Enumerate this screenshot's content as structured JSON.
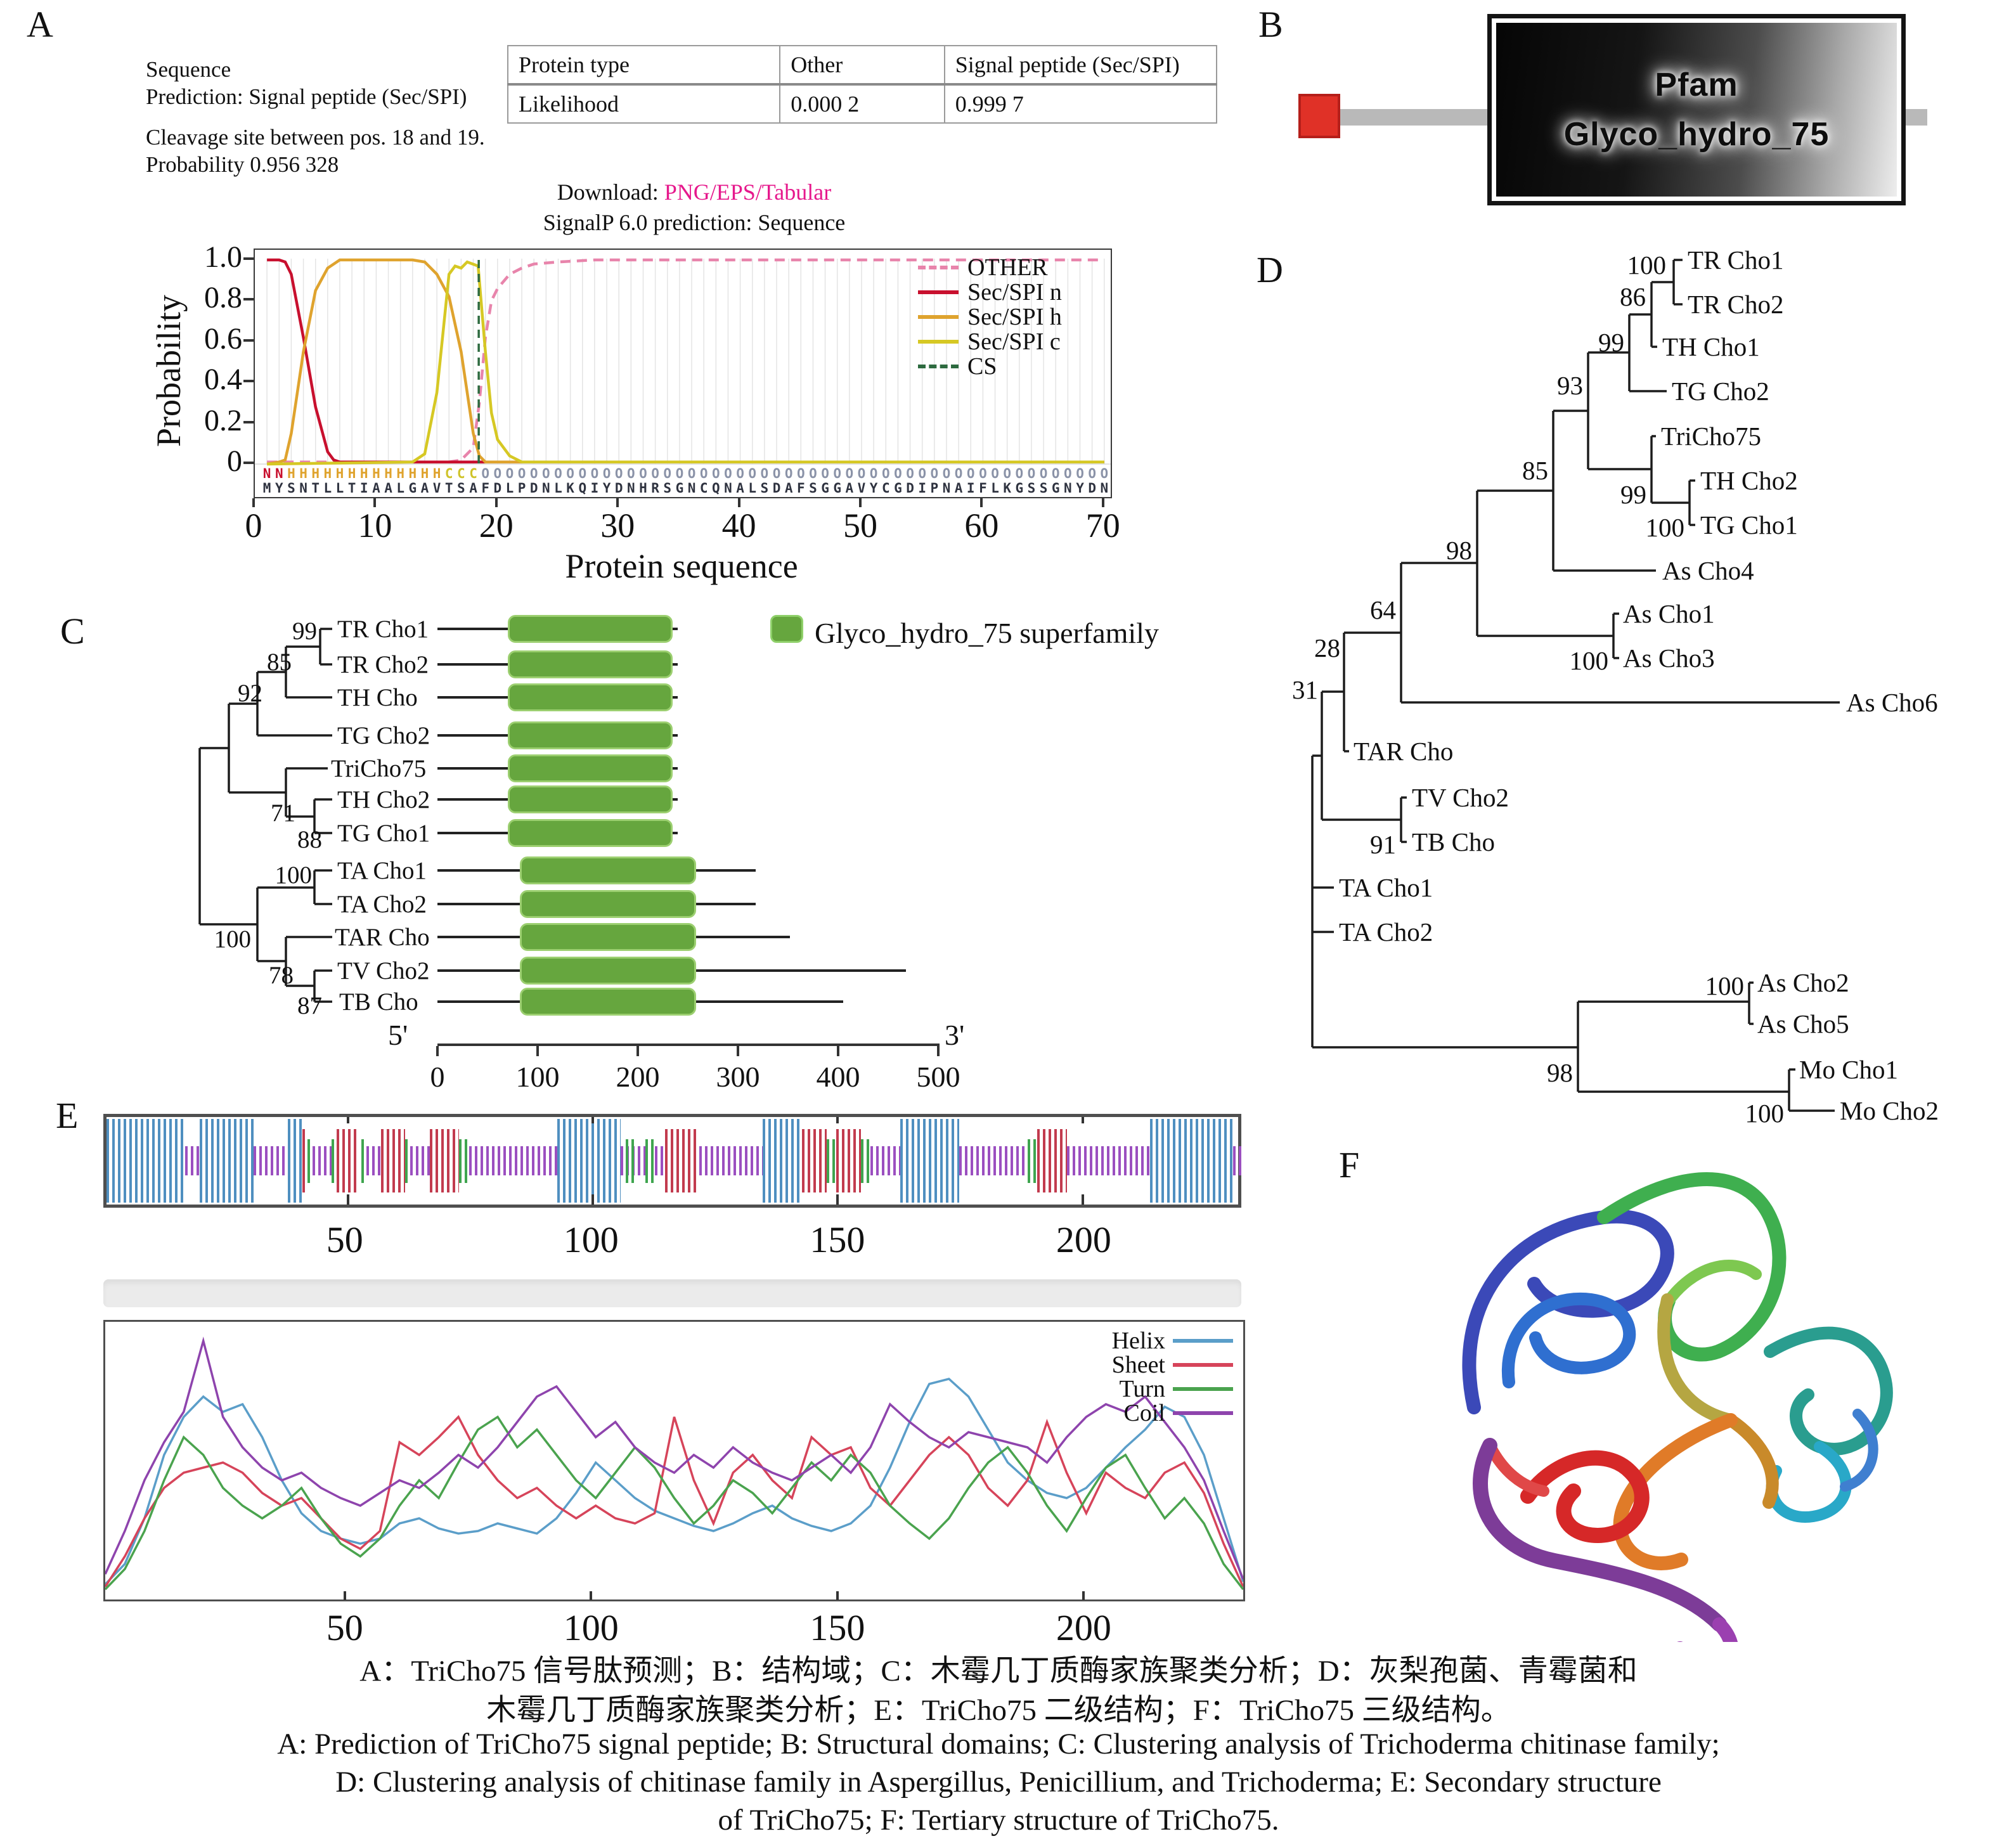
{
  "panel_a": {
    "label": "A",
    "info_line1": "Sequence",
    "info_line2": "Prediction: Signal peptide (Sec/SPI)",
    "cleavage_line1": "Cleavage site between pos. 18 and 19.",
    "cleavage_line2": "Probability 0.956 328",
    "table": {
      "col1": "Protein type",
      "col2": "Other",
      "col3": "Signal peptide (Sec/SPI)",
      "row_label": "Likelihood",
      "val_other": "0.000 2",
      "val_spi": "0.999 7"
    },
    "download_label": "Download:",
    "download_links": "PNG/EPS/Tabular",
    "subtitle": "SignalP 6.0 prediction: Sequence",
    "ylabel": "Probability",
    "xlabel": "Protein sequence",
    "ytick_labels": [
      "1.0",
      "0.8",
      "0.6",
      "0.4",
      "0.2",
      "0"
    ],
    "xtick_labels": [
      "0",
      "10",
      "20",
      "30",
      "40",
      "50",
      "60",
      "70"
    ],
    "sequence": "MYSNTLLTIAALGAVTSAFDLPDNLKQIYDNHRSGNCQNALSDAFSGGAVYCGDIPNAIFLKGSSGNYDN",
    "annotation": "NNHHHHHHHHHHHHHCCCOOOOOOOOOOOOOOOOOOOOOOOOOOOOOOOOOOOOOOOOOOOOOOOOOOOO",
    "annotation_colors": {
      "N": "#c8102e",
      "H": "#dfa32e",
      "C": "#cfc32a",
      "O": "#8b93a8"
    },
    "sequence_color": "#2f3340"
  },
  "panel_b": {
    "label": "B",
    "line1": "Pfam",
    "line2": "Glyco_hydro_75"
  },
  "panel_c": {
    "label": "C",
    "legend_label": "Glyco_hydro_75 superfamily",
    "domain_color": "#66a63e",
    "taxa": [
      "TR Cho1",
      "TR Cho2",
      "TH Cho",
      "TG Cho2",
      "TriCho75",
      "TH Cho2",
      "TG Cho1",
      "TA Cho1",
      "TA Cho2",
      "TAR Cho",
      "TV Cho2",
      "TB Cho"
    ],
    "bootstraps": [
      "99",
      "85",
      "92",
      "71",
      "88",
      "100",
      "100",
      "78",
      "87"
    ],
    "rows": [
      {
        "taxon": "TR Cho1",
        "line_end": 240,
        "dom_start": 70,
        "dom_end": 235
      },
      {
        "taxon": "TR Cho2",
        "line_end": 240,
        "dom_start": 70,
        "dom_end": 235
      },
      {
        "taxon": "TH Cho",
        "line_end": 240,
        "dom_start": 70,
        "dom_end": 235
      },
      {
        "taxon": "TG Cho2",
        "line_end": 240,
        "dom_start": 70,
        "dom_end": 235
      },
      {
        "taxon": "TriCho75",
        "line_end": 240,
        "dom_start": 70,
        "dom_end": 235
      },
      {
        "taxon": "TH Cho2",
        "line_end": 240,
        "dom_start": 70,
        "dom_end": 235
      },
      {
        "taxon": "TG Cho1",
        "line_end": 240,
        "dom_start": 70,
        "dom_end": 235
      },
      {
        "taxon": "TA Cho1",
        "line_end": 318,
        "dom_start": 82,
        "dom_end": 258
      },
      {
        "taxon": "TA Cho2",
        "line_end": 318,
        "dom_start": 82,
        "dom_end": 258
      },
      {
        "taxon": "TAR Cho",
        "line_end": 352,
        "dom_start": 82,
        "dom_end": 258
      },
      {
        "taxon": "TV Cho2",
        "line_end": 468,
        "dom_start": 82,
        "dom_end": 258
      },
      {
        "taxon": "TB Cho",
        "line_end": 405,
        "dom_start": 82,
        "dom_end": 258
      }
    ],
    "axis_ticks": [
      "0",
      "100",
      "200",
      "300",
      "400",
      "500"
    ],
    "five_prime": "5'",
    "three_prime": "3'"
  },
  "panel_d": {
    "label": "D",
    "taxa": [
      "TR Cho1",
      "TR Cho2",
      "TH Cho1",
      "TG Cho2",
      "TriCho75",
      "TH Cho2",
      "TG Cho1",
      "As Cho4",
      "As Cho1",
      "As Cho3",
      "As Cho6",
      "TAR Cho",
      "TV Cho2",
      "TB Cho",
      "TA Cho1",
      "TA Cho2",
      "As Cho2",
      "As Cho5",
      "Mo Cho1",
      "Mo Cho2"
    ],
    "bootstraps": [
      "100",
      "86",
      "99",
      "93",
      "85",
      "99",
      "100",
      "98",
      "64",
      "100",
      "28",
      "31",
      "91",
      "100",
      "98",
      "100"
    ]
  },
  "panel_e": {
    "label": "E",
    "tick_labels": [
      "50",
      "100",
      "150",
      "200"
    ],
    "bar_colors": {
      "helix": "#4f8fc0",
      "sheet": "#c23b4e",
      "turn": "#3fa54f",
      "coil": "#9b4fc0"
    },
    "bar_segments": {
      "coil": [
        [
          17,
          19
        ],
        [
          31,
          37
        ],
        [
          43,
          46
        ],
        [
          54,
          56
        ],
        [
          63,
          66
        ],
        [
          75,
          92
        ],
        [
          106,
          110
        ],
        [
          113,
          114
        ],
        [
          122,
          134
        ],
        [
          157,
          162
        ],
        [
          175,
          188
        ],
        [
          197,
          213
        ],
        [
          231,
          232
        ]
      ],
      "sheet": [
        [
          41,
          41
        ],
        [
          48,
          51
        ],
        [
          57,
          61
        ],
        [
          67,
          72
        ],
        [
          115,
          121
        ],
        [
          143,
          147
        ],
        [
          150,
          154
        ],
        [
          191,
          196
        ]
      ],
      "turn": [
        [
          42,
          42
        ],
        [
          47,
          47
        ],
        [
          53,
          53
        ],
        [
          62,
          62
        ],
        [
          73,
          74
        ],
        [
          107,
          108
        ],
        [
          111,
          112
        ],
        [
          148,
          149
        ],
        [
          155,
          156
        ],
        [
          189,
          190
        ]
      ],
      "helix": [
        [
          1,
          16
        ],
        [
          20,
          30
        ],
        [
          38,
          40
        ],
        [
          93,
          105
        ],
        [
          135,
          142
        ],
        [
          163,
          174
        ],
        [
          214,
          230
        ]
      ]
    }
  },
  "panel_f": {
    "label": "F"
  },
  "caption": {
    "zh1": "A：TriCho75 信号肽预测；B：结构域；C：木霉几丁质酶家族聚类分析；D：灰梨孢菌、青霉菌和",
    "zh2": "木霉几丁质酶家族聚类分析；E：TriCho75 二级结构；F：TriCho75 三级结构。",
    "en1": "A: Prediction of TriCho75 signal peptide; B: Structural domains; C: Clustering analysis of Trichoderma chitinase family;",
    "en2": "D: Clustering analysis of chitinase family in Aspergillus, Penicillium, and Trichoderma; E: Secondary structure",
    "en3": "of TriCho75; F: Tertiary structure of TriCho75."
  },
  "chart_data": [
    {
      "type": "line",
      "title": "SignalP 6.0 prediction: Sequence",
      "xlabel": "Protein sequence",
      "ylabel": "Probability",
      "xlim": [
        0,
        70
      ],
      "ylim": [
        0,
        1.0
      ],
      "xticks": [
        0,
        10,
        20,
        30,
        40,
        50,
        60,
        70
      ],
      "yticks": [
        0,
        0.2,
        0.4,
        0.6,
        0.8,
        1.0
      ],
      "grid": "per-residue vertical",
      "legend_position": "top-right",
      "cs_x": 18.45,
      "series": [
        {
          "name": "OTHER",
          "color": "#e884ab",
          "dash": true,
          "points": [
            [
              1,
              0.01
            ],
            [
              16,
              0.01
            ],
            [
              17,
              0.02
            ],
            [
              18,
              0.08
            ],
            [
              18.5,
              0.3
            ],
            [
              19,
              0.62
            ],
            [
              19.5,
              0.8
            ],
            [
              20,
              0.86
            ],
            [
              21,
              0.93
            ],
            [
              22,
              0.96
            ],
            [
              23,
              0.98
            ],
            [
              25,
              0.99
            ],
            [
              28,
              1.0
            ],
            [
              70,
              1.0
            ]
          ]
        },
        {
          "name": "Sec/SPI n",
          "color": "#c8102e",
          "dash": false,
          "points": [
            [
              1,
              1.0
            ],
            [
              2,
              1.0
            ],
            [
              2.5,
              0.99
            ],
            [
              3,
              0.93
            ],
            [
              4,
              0.62
            ],
            [
              5,
              0.28
            ],
            [
              6,
              0.06
            ],
            [
              6.5,
              0.02
            ],
            [
              7,
              0.01
            ],
            [
              70,
              0.01
            ]
          ]
        },
        {
          "name": "Sec/SPI h",
          "color": "#dfa32e",
          "dash": false,
          "points": [
            [
              1,
              0.0
            ],
            [
              2,
              0.01
            ],
            [
              2.5,
              0.02
            ],
            [
              3,
              0.15
            ],
            [
              4,
              0.55
            ],
            [
              5,
              0.85
            ],
            [
              6,
              0.96
            ],
            [
              7,
              1.0
            ],
            [
              13,
              1.0
            ],
            [
              14,
              0.99
            ],
            [
              15,
              0.93
            ],
            [
              16,
              0.82
            ],
            [
              17,
              0.55
            ],
            [
              18,
              0.15
            ],
            [
              18.5,
              0.04
            ],
            [
              19,
              0.01
            ],
            [
              70,
              0.01
            ]
          ]
        },
        {
          "name": "Sec/SPI c",
          "color": "#d6c824",
          "dash": false,
          "points": [
            [
              1,
              0.0
            ],
            [
              13,
              0.01
            ],
            [
              14,
              0.05
            ],
            [
              15,
              0.35
            ],
            [
              16,
              0.93
            ],
            [
              16.5,
              0.97
            ],
            [
              17,
              0.96
            ],
            [
              17.5,
              0.99
            ],
            [
              18.4,
              0.97
            ],
            [
              19,
              0.55
            ],
            [
              19.5,
              0.25
            ],
            [
              20,
              0.12
            ],
            [
              21,
              0.04
            ],
            [
              22,
              0.01
            ],
            [
              70,
              0.01
            ]
          ]
        },
        {
          "name": "CS",
          "color": "#2d6a3f",
          "dash": true,
          "points": []
        }
      ]
    },
    {
      "type": "line",
      "title": "TriCho75 secondary structure propensity",
      "xlim": [
        0,
        235
      ],
      "ylim": [
        0,
        105
      ],
      "xticks": [
        50,
        100,
        150,
        200
      ],
      "x_step": 4,
      "legend_position": "top-right",
      "series": [
        {
          "name": "Helix",
          "color": "#5b9ec9",
          "values": [
            4,
            12,
            30,
            55,
            70,
            78,
            72,
            75,
            62,
            45,
            32,
            25,
            22,
            20,
            22,
            28,
            30,
            26,
            24,
            25,
            28,
            26,
            24,
            30,
            40,
            52,
            45,
            38,
            33,
            30,
            27,
            25,
            28,
            32,
            35,
            30,
            27,
            25,
            28,
            35,
            50,
            68,
            83,
            85,
            78,
            65,
            52,
            45,
            40,
            38,
            42,
            50,
            58,
            65,
            74,
            70,
            55,
            30,
            5
          ]
        },
        {
          "name": "Sheet",
          "color": "#d6445a",
          "values": [
            3,
            15,
            30,
            42,
            48,
            50,
            52,
            48,
            40,
            35,
            38,
            30,
            22,
            18,
            25,
            60,
            55,
            62,
            70,
            55,
            45,
            38,
            42,
            35,
            30,
            35,
            30,
            28,
            32,
            70,
            45,
            28,
            48,
            55,
            45,
            38,
            62,
            55,
            58,
            42,
            35,
            45,
            55,
            62,
            55,
            42,
            35,
            45,
            68,
            48,
            32,
            48,
            42,
            38,
            48,
            52,
            40,
            20,
            3
          ]
        },
        {
          "name": "Turn",
          "color": "#4aa34e",
          "values": [
            2,
            10,
            25,
            45,
            62,
            55,
            42,
            35,
            30,
            35,
            42,
            30,
            20,
            15,
            22,
            35,
            45,
            38,
            52,
            65,
            70,
            58,
            65,
            55,
            45,
            38,
            48,
            58,
            50,
            38,
            28,
            35,
            45,
            40,
            32,
            42,
            52,
            45,
            55,
            48,
            35,
            28,
            22,
            30,
            42,
            52,
            58,
            48,
            35,
            25,
            38,
            50,
            55,
            42,
            30,
            38,
            28,
            12,
            2
          ]
        },
        {
          "name": "Coil",
          "color": "#8e44ad",
          "values": [
            8,
            25,
            45,
            60,
            72,
            100,
            70,
            58,
            50,
            45,
            48,
            42,
            38,
            35,
            40,
            45,
            42,
            48,
            55,
            50,
            58,
            68,
            78,
            82,
            72,
            62,
            68,
            58,
            52,
            48,
            55,
            50,
            58,
            52,
            48,
            45,
            50,
            55,
            48,
            58,
            75,
            68,
            62,
            58,
            64,
            62,
            60,
            58,
            52,
            62,
            70,
            75,
            72,
            78,
            68,
            58,
            45,
            25,
            6
          ]
        }
      ]
    }
  ]
}
